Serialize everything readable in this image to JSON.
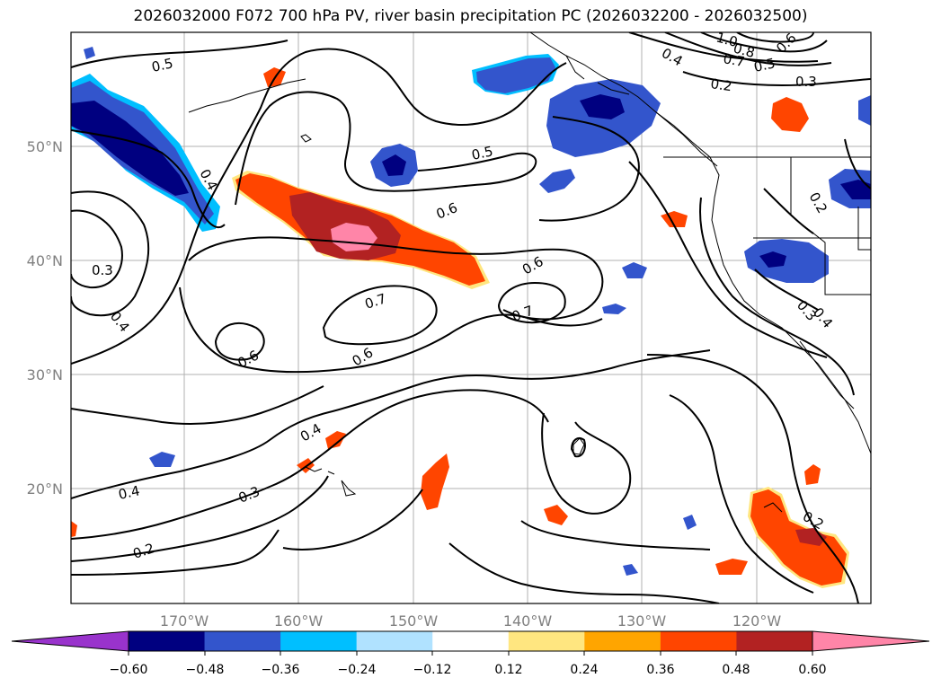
{
  "title": "2026032000 F072 700 hPa PV, river basin precipitation PC (2026032200 - 2026032500)",
  "lon_ticks": [
    "170°W",
    "160°W",
    "150°W",
    "140°W",
    "130°W",
    "120°W"
  ],
  "lat_ticks": [
    "50°N",
    "40°N",
    "30°N",
    "20°N"
  ],
  "contour_labels": [
    "0.5",
    "0.4",
    "0.3",
    "0.4",
    "0.5",
    "0.6",
    "0.6",
    "0.7",
    "0.7",
    "0.6",
    "0.6",
    "0.4",
    "0.3",
    "0.4",
    "0.2",
    "0.4",
    "0.2",
    "0.3",
    "0.5",
    "0.6",
    "0.7",
    "0.8",
    "1.0",
    "0.2",
    "0.3",
    "0.4",
    "0.2"
  ],
  "colorbar": {
    "ticks": [
      "−0.60",
      "−0.48",
      "−0.36",
      "−0.24",
      "−0.12",
      "0.12",
      "0.24",
      "0.36",
      "0.48",
      "0.60"
    ],
    "colors": [
      "#9933cc",
      "#000080",
      "#3355cc",
      "#00bfff",
      "#b0e2ff",
      "#ffffff",
      "#ffe680",
      "#ffa500",
      "#ff4500",
      "#b22222",
      "#ff85a8"
    ]
  },
  "colors": {
    "neg_strong": "#000080",
    "neg_mid": "#3355cc",
    "neg_light": "#00bfff",
    "pos_light": "#ffa500",
    "pos_mid": "#ff4500",
    "pos_strong": "#b22222",
    "pos_max": "#ff85a8"
  }
}
